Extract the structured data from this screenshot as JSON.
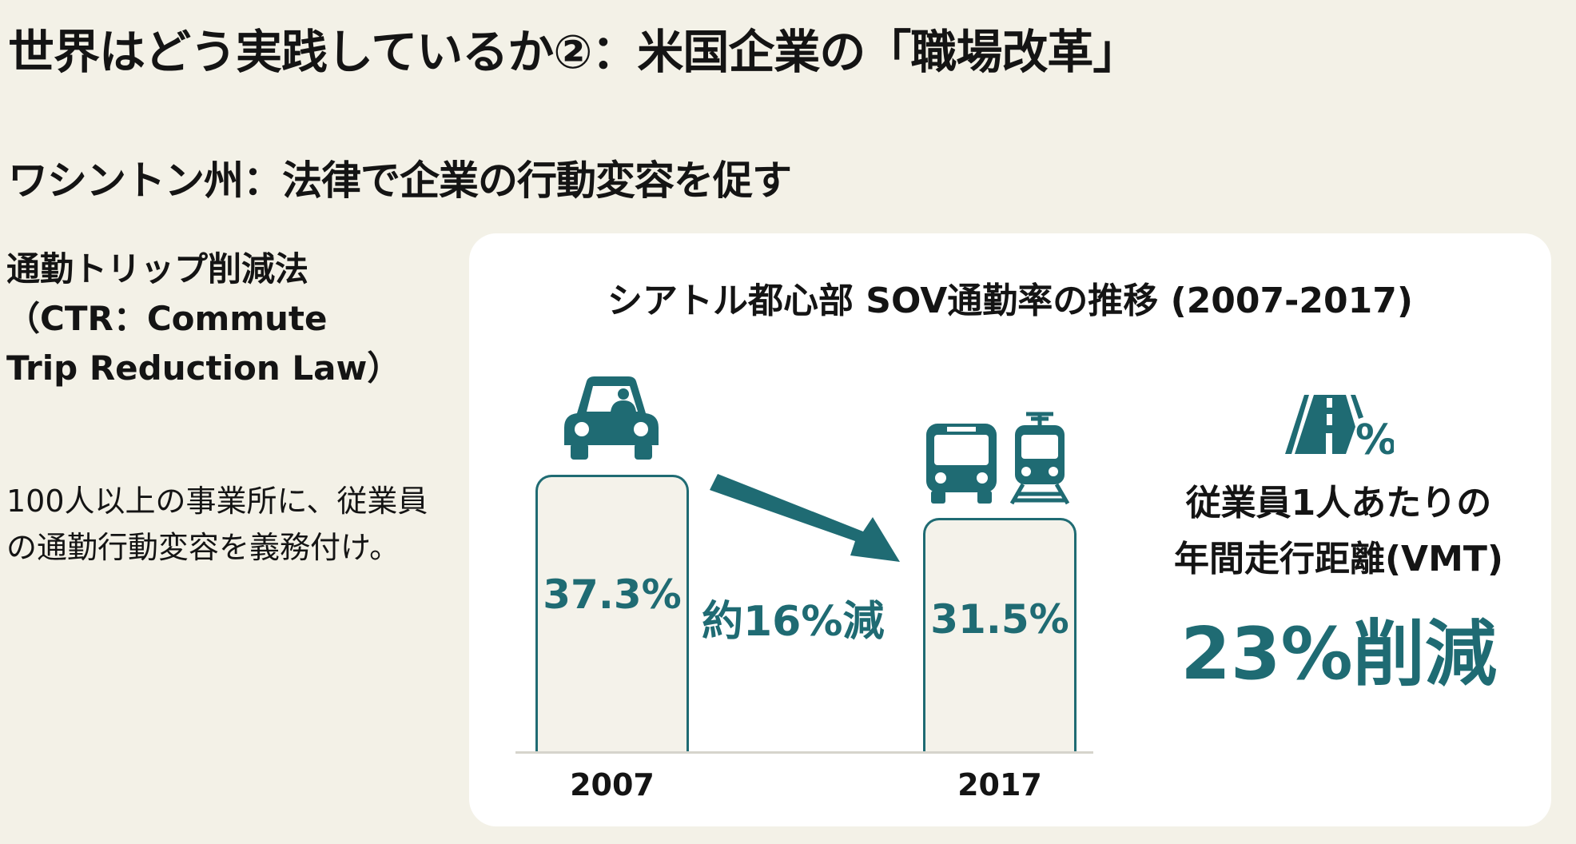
{
  "slide": {
    "title": "世界はどう実践しているか②：米国企業の「職場改革」",
    "subtitle": "ワシントン州：法律で企業の行動変容を促す",
    "law_name": "通勤トリップ削減法（CTR：Commute Trip Reduction Law）",
    "description": "100人以上の事業所に、従業員の通勤行動変容を義務付け。"
  },
  "chart_data": {
    "type": "bar",
    "title": "シアトル都心部 SOV通勤率の推移 (2007-2017)",
    "categories": [
      "2007",
      "2017"
    ],
    "values": [
      37.3,
      31.5
    ],
    "value_labels": [
      "37.3%",
      "31.5%"
    ],
    "unit": "%",
    "ylim": [
      0,
      40
    ],
    "annotation": "約16%減",
    "icons": [
      "car-icon",
      "bus-icon",
      "train-icon"
    ]
  },
  "vmt": {
    "label_line1": "従業員1人あたりの",
    "label_line2": "年間走行距離(VMT)",
    "value": "23%削減",
    "icon": "road-percent-icon"
  },
  "colors": {
    "accent": "#1f6b73",
    "background": "#f3f1e7",
    "card": "#ffffff",
    "bar_fill": "#f4f2ea"
  }
}
